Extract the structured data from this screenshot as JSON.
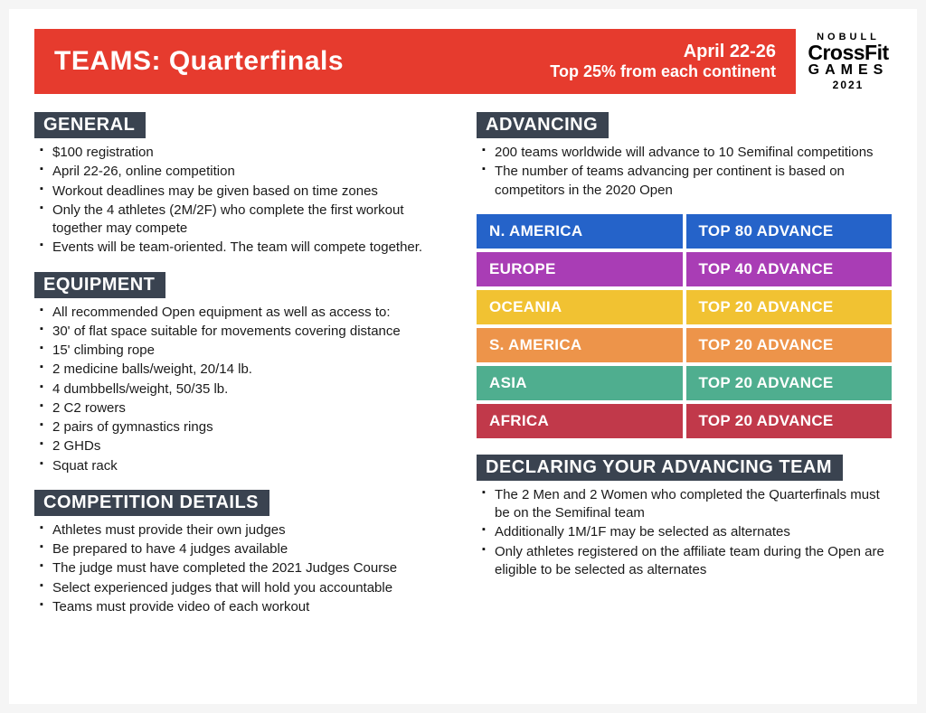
{
  "banner": {
    "title": "TEAMS: Quarterfinals",
    "date": "April 22-26",
    "subtitle": "Top 25% from each continent",
    "bg_color": "#e63b2e"
  },
  "logo": {
    "line1": "NOBULL",
    "line2": "CrossFit",
    "line3": "GAMES",
    "line4": "2021"
  },
  "section_header_bg": "#3a4350",
  "left_sections": [
    {
      "title": "GENERAL",
      "items": [
        "$100 registration",
        "April 22-26, online competition",
        "Workout deadlines may be given based on time zones",
        "Only the 4 athletes (2M/2F) who complete the first workout together may compete",
        "Events will be team-oriented. The team will compete together."
      ]
    },
    {
      "title": "EQUIPMENT",
      "items": [
        "All recommended Open equipment as well as access to:",
        "30' of flat space suitable for movements covering distance",
        "15' climbing rope",
        "2 medicine balls/weight, 20/14 lb.",
        "4 dumbbells/weight, 50/35 lb.",
        "2 C2 rowers",
        "2 pairs of gymnastics rings",
        "2 GHDs",
        "Squat rack"
      ]
    },
    {
      "title": "COMPETITION DETAILS",
      "items": [
        "Athletes must provide their own judges",
        "Be prepared to have 4 judges available",
        "The judge must have completed the 2021 Judges Course",
        "Select experienced judges that will hold you accountable",
        "Teams must provide video of each workout"
      ]
    }
  ],
  "right_sections": [
    {
      "title": "ADVANCING",
      "items": [
        "200 teams worldwide will advance to 10 Semifinal competitions",
        "The number of teams advancing per continent is based on competitors in the 2020 Open"
      ]
    }
  ],
  "region_table": [
    {
      "region": "N. AMERICA",
      "advance": "TOP 80 ADVANCE",
      "color": "#2563c9"
    },
    {
      "region": "EUROPE",
      "advance": "TOP 40 ADVANCE",
      "color": "#a93db5"
    },
    {
      "region": "OCEANIA",
      "advance": "TOP 20 ADVANCE",
      "color": "#f1c232"
    },
    {
      "region": "S. AMERICA",
      "advance": "TOP 20 ADVANCE",
      "color": "#ed944a"
    },
    {
      "region": "ASIA",
      "advance": "TOP 20 ADVANCE",
      "color": "#4fae8f"
    },
    {
      "region": "AFRICA",
      "advance": "TOP 20 ADVANCE",
      "color": "#c1394a"
    }
  ],
  "declaring_section": {
    "title": "DECLARING YOUR ADVANCING TEAM",
    "items": [
      "The 2 Men and 2 Women who completed the Quarterfinals must be on the Semifinal team",
      "Additionally 1M/1F may be selected as alternates",
      "Only athletes registered on the affiliate team during the Open are eligible to be selected as alternates"
    ]
  }
}
